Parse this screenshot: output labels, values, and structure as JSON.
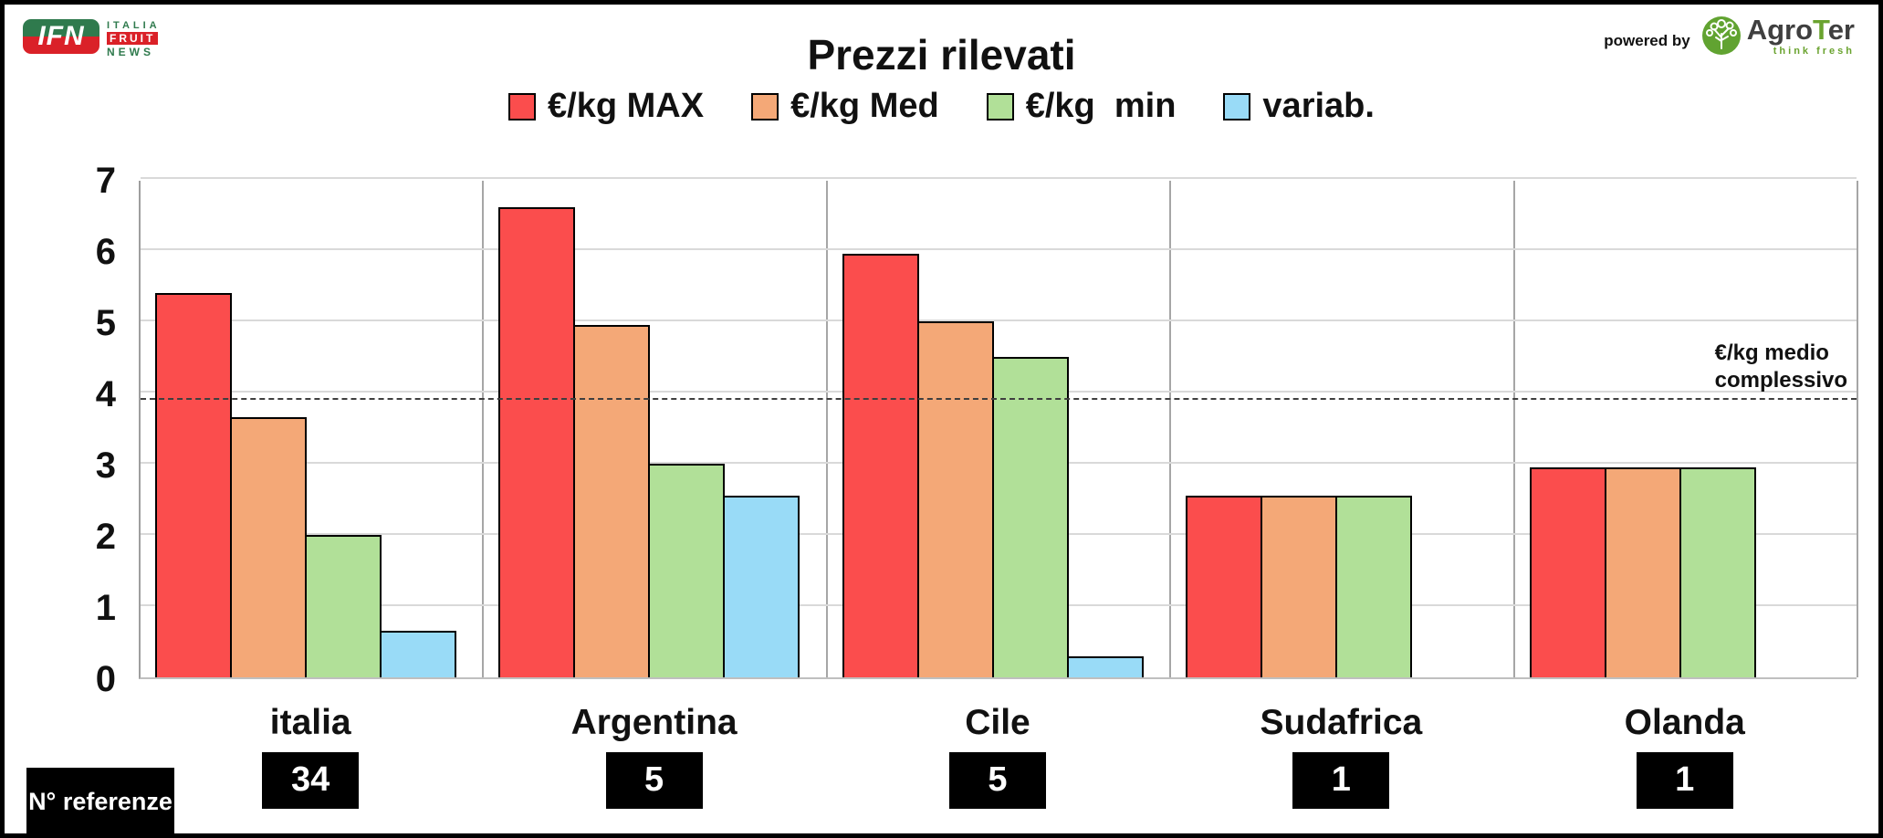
{
  "header": {
    "ifn_logo": {
      "acronym": "IFN",
      "line1": "ITALIA",
      "line2": "FRUIT",
      "line3": "NEWS"
    },
    "powered_by": "powered by",
    "agroter": {
      "name_part1": "Agro",
      "name_part2": "T",
      "name_part3": "er",
      "tagline": "think fresh"
    }
  },
  "chart_data": {
    "type": "bar",
    "title": "Prezzi rilevati",
    "categories": [
      "italia",
      "Argentina",
      "Cile",
      "Sudafrica",
      "Olanda"
    ],
    "series": [
      {
        "name": "€/kg MAX",
        "color": "#fb4d4d",
        "values": [
          5.4,
          6.6,
          5.95,
          2.55,
          2.95
        ]
      },
      {
        "name": "€/kg Med",
        "color": "#f4a877",
        "values": [
          3.65,
          4.95,
          5.0,
          2.55,
          2.95
        ]
      },
      {
        "name": "€/kg  min",
        "color": "#b1e098",
        "values": [
          2.0,
          3.0,
          4.5,
          2.55,
          2.95
        ]
      },
      {
        "name": "variab.",
        "color": "#99dbf7",
        "values": [
          0.65,
          2.55,
          0.3,
          null,
          null
        ]
      }
    ],
    "ylim": [
      0,
      7
    ],
    "yticks": [
      0,
      1,
      2,
      3,
      4,
      5,
      6,
      7
    ],
    "grid": true,
    "legend_position": "top",
    "reference_line": {
      "value": 3.9,
      "style": "dashed",
      "label": "€/kg medio complessivo",
      "label_lines": [
        "€/kg medio",
        "complessivo"
      ]
    }
  },
  "footer": {
    "ref_label": "N° referenze",
    "counts": [
      "34",
      "5",
      "5",
      "1",
      "1"
    ]
  },
  "colors": {
    "max_bar": "#fb4d4d",
    "med_bar": "#f4a877",
    "min_bar": "#b1e098",
    "variab_bar": "#99dbf7",
    "ifn_green": "#2f7a4d",
    "ifn_red": "#da2128",
    "agroter_green": "#6aa32f"
  }
}
